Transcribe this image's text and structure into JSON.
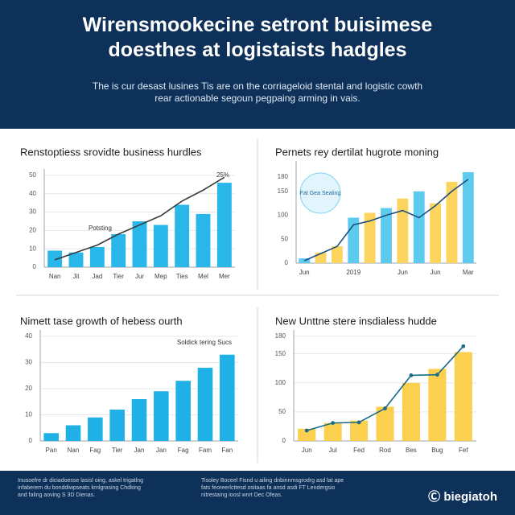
{
  "header": {
    "title_lines": [
      "Wirensmookecine setront buisimese",
      "doesthes at logistaists hadgles"
    ],
    "subtitle_lines": [
      "The is cur desast lusines Tis are on the corriageloid stental and logistic cowth",
      "rear actionable segoun pegpaing arming in vais."
    ]
  },
  "chart_data": [
    {
      "type": "bar",
      "title": "Renstoptiess srovidte business hurdles",
      "categories": [
        "Nan",
        "Jit",
        "Jad",
        "Tier",
        "Jur",
        "Mep",
        "Ties",
        "Mel",
        "Mer"
      ],
      "values": [
        9,
        8,
        11,
        18,
        25,
        23,
        34,
        29,
        46
      ],
      "color": "#29b6e8",
      "line": {
        "values": [
          4,
          8,
          12,
          18,
          23,
          28,
          36,
          42,
          49
        ],
        "color": "#3a3a3a"
      },
      "ylim": [
        0,
        50
      ],
      "yticks": [
        0,
        10,
        20,
        30,
        40,
        50
      ],
      "grid": true,
      "annotations": [
        "Potsting",
        "25%"
      ]
    },
    {
      "type": "bar",
      "title": "Pernets rey dertilat hugrote moning",
      "categories": [
        "Jun",
        null,
        null,
        "2019",
        null,
        null,
        "Jun",
        null,
        "Jun",
        null,
        "Mar"
      ],
      "values": [
        10,
        22,
        35,
        95,
        105,
        115,
        135,
        150,
        125,
        170,
        190
      ],
      "colors": [
        "#5ccbee",
        "#fcd55f",
        "#fcd55f",
        "#5ccbee",
        "#fcd55f",
        "#5ccbee",
        "#fcd55f",
        "#5ccbee",
        "#fcd55f",
        "#fcd55f",
        "#5ccbee"
      ],
      "line": {
        "values": [
          5,
          20,
          35,
          80,
          88,
          100,
          110,
          95,
          120,
          150,
          175
        ],
        "color": "#1c4f80"
      },
      "ylim": [
        0,
        200
      ],
      "yticks": [
        0,
        50,
        100,
        150,
        180
      ],
      "grid": false,
      "annotations": [
        "Fat Gea Sealing"
      ]
    },
    {
      "type": "bar",
      "title": "Nimett tase growth of hebess ourth",
      "categories": [
        "Pan",
        "Nan",
        "Fag",
        "Tier",
        "Jan",
        "Jan",
        "Fag",
        "Fam",
        "Fan"
      ],
      "values": [
        3,
        6,
        9,
        12,
        16,
        19,
        23,
        28,
        33
      ],
      "color": "#1fb0e6",
      "ylim": [
        0,
        40
      ],
      "yticks": [
        0,
        10,
        20,
        30,
        40
      ],
      "grid": true,
      "annotations": [
        "Soldick tering Sucs"
      ]
    },
    {
      "type": "bar",
      "title": "New Unttne stere insdialess hudde",
      "categories": [
        "Jun",
        "Jul",
        "Fed",
        "Rod",
        "Bes",
        "Bug",
        "Fef"
      ],
      "values": [
        21,
        31,
        35,
        59,
        100,
        124,
        153
      ],
      "color": "#fcd04f",
      "line": {
        "values": [
          18,
          31,
          32,
          56,
          113,
          114,
          163
        ],
        "color": "#1a6a8a",
        "markers": true
      },
      "ylim": [
        0,
        180
      ],
      "yticks": [
        0,
        50,
        100,
        150,
        180
      ],
      "grid": true,
      "annotations": []
    }
  ],
  "footer": {
    "left_lines": [
      "Inusoefre dr diciadoesse lasisl oing, askel trigatlng",
      "infaberem du bonddiwpseats kmlgrasing Chdking",
      "and faling aoving S 3D Dienas."
    ],
    "middle_lines": [
      "Tisoley Boceel Fisnd u ailing dnbinnmsgrodrg asd lat ape",
      "fats feoreerlcttesd ositaas fa ansd asdi FT Lendergsio",
      "nitrestaing ioosl wnrt Dec Ofeas."
    ],
    "brand": "biegiatoh"
  }
}
